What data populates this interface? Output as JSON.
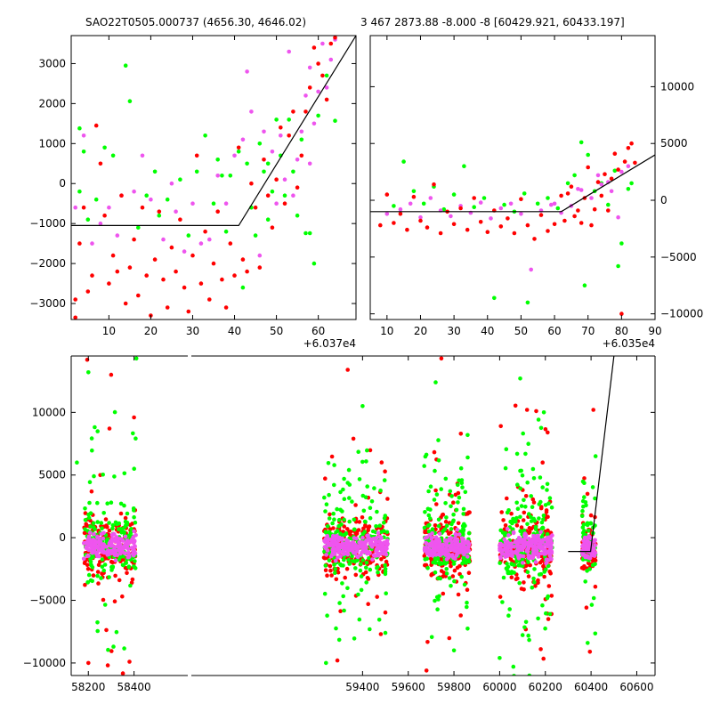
{
  "colors": {
    "green": "#00ff00",
    "violet": "#ee55ee",
    "red": "#ff0000",
    "trend": "#000000"
  },
  "chart_data": [
    {
      "type": "scatter",
      "title": "SAO22T0505.000737 (4656.30, 4646.02)",
      "x_offset_label": "+6.037e4",
      "xlim": [
        1,
        69
      ],
      "ylim": [
        -3400,
        3700
      ],
      "xticks": [
        "10",
        "20",
        "30",
        "40",
        "50",
        "60"
      ],
      "yticks": [
        "3000",
        "2000",
        "1000",
        "0",
        "−1000",
        "−2000",
        "−3000"
      ],
      "xtick_values": [
        10,
        20,
        30,
        40,
        50,
        60
      ],
      "ytick_values": [
        3000,
        2000,
        1000,
        0,
        -1000,
        -2000,
        -3000
      ],
      "trend_line": {
        "x": [
          1,
          41,
          69
        ],
        "y": [
          -1050,
          -1050,
          3700
        ]
      },
      "series": [
        {
          "color_key": "green",
          "x": [
            3,
            3,
            4,
            5,
            7,
            9,
            11,
            14,
            15,
            17,
            19,
            21,
            22,
            24,
            27,
            29,
            31,
            33,
            35,
            36,
            37,
            38,
            39,
            41,
            42,
            43,
            44,
            45,
            46,
            47,
            48,
            48,
            49,
            50,
            51,
            52,
            53,
            54,
            55,
            56,
            57,
            58,
            59,
            60,
            62,
            64
          ],
          "y": [
            1380,
            -200,
            800,
            -900,
            -400,
            900,
            700,
            2950,
            2060,
            -1100,
            -300,
            300,
            -800,
            -400,
            100,
            -1300,
            300,
            1200,
            -500,
            600,
            200,
            -1200,
            200,
            800,
            -2600,
            500,
            -600,
            -1300,
            1000,
            300,
            -900,
            500,
            -200,
            1600,
            700,
            -300,
            1600,
            300,
            -800,
            1100,
            -1240,
            -1240,
            -2000,
            1700,
            2700,
            1570
          ]
        },
        {
          "color_key": "violet",
          "x": [
            2,
            4,
            6,
            8,
            10,
            12,
            13,
            16,
            18,
            20,
            23,
            25,
            26,
            28,
            30,
            32,
            34,
            36,
            38,
            40,
            42,
            43,
            44,
            46,
            47,
            49,
            50,
            51,
            52,
            53,
            54,
            55,
            56,
            57,
            58,
            58,
            59,
            60,
            61,
            62,
            63,
            64
          ],
          "y": [
            -600,
            1200,
            -1500,
            -1000,
            -600,
            -1300,
            -300,
            -200,
            700,
            -400,
            -1400,
            0,
            -700,
            -1700,
            -500,
            -1500,
            -1400,
            200,
            -500,
            700,
            1100,
            2800,
            1800,
            -1800,
            1300,
            800,
            -500,
            1200,
            100,
            3300,
            -300,
            600,
            1300,
            2200,
            500,
            2900,
            1500,
            2300,
            3500,
            2400,
            3100,
            3600
          ]
        },
        {
          "color_key": "red",
          "x": [
            2,
            2,
            3,
            4,
            5,
            6,
            7,
            8,
            9,
            10,
            11,
            12,
            13,
            14,
            15,
            16,
            17,
            18,
            19,
            20,
            21,
            22,
            23,
            24,
            25,
            26,
            27,
            28,
            29,
            30,
            31,
            32,
            33,
            34,
            35,
            36,
            37,
            38,
            39,
            40,
            41,
            42,
            43,
            44,
            45,
            46,
            47,
            48,
            49,
            50,
            51,
            52,
            53,
            54,
            55,
            56,
            57,
            58,
            59,
            60,
            61,
            62,
            63,
            64
          ],
          "y": [
            -3350,
            -2900,
            -1500,
            -600,
            -2700,
            -2300,
            1450,
            500,
            -800,
            -2500,
            -1800,
            -2200,
            -300,
            -3000,
            -2100,
            -1400,
            -2800,
            -600,
            -2300,
            -3300,
            -1900,
            -700,
            -2400,
            -3100,
            -1600,
            -2200,
            -900,
            -2600,
            -3200,
            -1800,
            700,
            -2500,
            -1200,
            -2900,
            -2000,
            -700,
            -2400,
            -3100,
            -1500,
            -2300,
            900,
            -1900,
            -2200,
            0,
            -600,
            -2100,
            600,
            -300,
            -1100,
            100,
            1400,
            -500,
            1200,
            1800,
            -100,
            700,
            1800,
            2400,
            3400,
            3000,
            2700,
            2100,
            3500,
            3650
          ]
        }
      ]
    },
    {
      "type": "scatter",
      "title": "3 467 2873.88 -8.000 -8 [60429.921, 60433.197]",
      "x_offset_label": "+6.035e4",
      "xlim": [
        5,
        90
      ],
      "ylim": [
        -10500,
        14500
      ],
      "xticks": [
        "10",
        "20",
        "30",
        "40",
        "50",
        "60",
        "70",
        "80",
        "90"
      ],
      "yticks": [
        "10000",
        "5000",
        "0",
        "−5000",
        "−10000"
      ],
      "xtick_values": [
        10,
        20,
        30,
        40,
        50,
        60,
        70,
        80,
        90
      ],
      "ytick_values": [
        10000,
        5000,
        0,
        -5000,
        -10000
      ],
      "trend_line": {
        "x": [
          5,
          62,
          90
        ],
        "y": [
          -1000,
          -1000,
          4000
        ]
      },
      "series": [
        {
          "color_key": "green",
          "x": [
            12,
            15,
            18,
            21,
            24,
            27,
            30,
            33,
            36,
            39,
            42,
            45,
            48,
            51,
            52,
            55,
            58,
            61,
            64,
            66,
            68,
            69,
            70,
            72,
            74,
            76,
            78,
            79,
            80,
            82,
            83
          ],
          "y": [
            -500,
            3400,
            800,
            -300,
            1200,
            -800,
            500,
            3000,
            -600,
            200,
            -8600,
            -400,
            -1000,
            600,
            -9000,
            -300,
            200,
            -700,
            1500,
            2200,
            5100,
            -7500,
            4000,
            800,
            1500,
            -400,
            2600,
            -5800,
            -3800,
            1000,
            1500
          ]
        },
        {
          "color_key": "violet",
          "x": [
            10,
            14,
            17,
            20,
            23,
            26,
            29,
            32,
            35,
            38,
            41,
            44,
            47,
            50,
            53,
            56,
            59,
            62,
            65,
            68,
            71,
            74,
            77,
            80,
            82,
            76,
            73,
            79,
            67,
            60
          ],
          "y": [
            -1200,
            -800,
            -300,
            -1500,
            200,
            -900,
            -1400,
            -500,
            -1100,
            -200,
            -1600,
            -700,
            -300,
            -1200,
            -6100,
            -900,
            -400,
            -1100,
            -500,
            900,
            200,
            1400,
            800,
            2500,
            3000,
            1600,
            2200,
            -1500,
            1000,
            -300
          ]
        },
        {
          "color_key": "red",
          "x": [
            8,
            10,
            12,
            14,
            16,
            18,
            20,
            22,
            24,
            26,
            28,
            30,
            32,
            34,
            36,
            38,
            40,
            42,
            44,
            46,
            48,
            50,
            52,
            54,
            56,
            58,
            60,
            62,
            63,
            64,
            65,
            66,
            67,
            68,
            69,
            70,
            71,
            72,
            73,
            74,
            75,
            76,
            77,
            78,
            79,
            80,
            81,
            82,
            83,
            84
          ],
          "y": [
            -2200,
            500,
            -2000,
            -1200,
            -2600,
            300,
            -1800,
            -2400,
            1400,
            -2900,
            -1000,
            -2100,
            -700,
            -2600,
            200,
            -1900,
            -2800,
            -900,
            -2300,
            -1600,
            -2900,
            100,
            -2200,
            -3400,
            -1300,
            -2700,
            -2100,
            400,
            -1800,
            600,
            1200,
            -1400,
            -900,
            -2000,
            200,
            2900,
            -2200,
            -800,
            1600,
            400,
            2300,
            -900,
            1900,
            4100,
            2700,
            -10000,
            3400,
            4600,
            5000,
            3300
          ]
        }
      ]
    },
    {
      "type": "scatter",
      "xlim": [
        58125,
        60680
      ],
      "ylim": [
        -11000,
        14500
      ],
      "xticks": [
        "58200",
        "58400",
        "59400",
        "59600",
        "59800",
        "60000",
        "60200",
        "60400",
        "60600"
      ],
      "xtick_values": [
        58200,
        58400,
        59400,
        59600,
        59800,
        60000,
        60200,
        60400,
        60600
      ],
      "yticks": [
        "10000",
        "5000",
        "0",
        "−5000",
        "−10000"
      ],
      "ytick_values": [
        10000,
        5000,
        0,
        -5000,
        -10000
      ],
      "trend_line": {
        "x": [
          60300,
          60398,
          60500
        ],
        "y": [
          -1100,
          -1100,
          14500
        ]
      },
      "clusters": [
        {
          "x_range": [
            58180,
            58410
          ],
          "density": 170,
          "spread": 1800,
          "tail": 5000,
          "extremes": [
            [
              58195,
              14200
            ],
            [
              58200,
              13200
            ],
            [
              58300,
              13000
            ],
            [
              58410,
              14300
            ],
            [
              58200,
              -10000
            ],
            [
              58310,
              -8700
            ],
            [
              58380,
              -9900
            ],
            [
              58150,
              6000
            ],
            [
              58400,
              9600
            ]
          ]
        },
        {
          "x_range": [
            59230,
            59510
          ],
          "density": 210,
          "spread": 1600,
          "tail": 4200,
          "extremes": [
            [
              59335,
              13400
            ],
            [
              59240,
              -10000
            ],
            [
              59290,
              -9800
            ],
            [
              59400,
              10500
            ],
            [
              59480,
              -7700
            ],
            [
              59500,
              -7600
            ],
            [
              59360,
              7900
            ]
          ]
        },
        {
          "x_range": [
            59670,
            59870
          ],
          "density": 190,
          "spread": 1700,
          "tail": 4500,
          "extremes": [
            [
              59745,
              14300
            ],
            [
              59720,
              12400
            ],
            [
              59680,
              -10600
            ],
            [
              59800,
              -9000
            ],
            [
              59830,
              8300
            ],
            [
              59860,
              6400
            ]
          ]
        },
        {
          "x_range": [
            60000,
            60230
          ],
          "density": 200,
          "spread": 2000,
          "tail": 5000,
          "extremes": [
            [
              60005,
              8900
            ],
            [
              60090,
              12700
            ],
            [
              60120,
              10200
            ],
            [
              60130,
              -11000
            ],
            [
              60160,
              10100
            ],
            [
              60000,
              -9600
            ],
            [
              60180,
              -8900
            ],
            [
              60060,
              -10300
            ],
            [
              60210,
              8400
            ]
          ]
        },
        {
          "x_range": [
            60360,
            60420
          ],
          "density": 70,
          "spread": 1500,
          "tail": 3000,
          "extremes": [
            [
              60410,
              10200
            ],
            [
              60385,
              -8400
            ],
            [
              60395,
              -9100
            ],
            [
              60420,
              6500
            ]
          ]
        }
      ]
    }
  ]
}
